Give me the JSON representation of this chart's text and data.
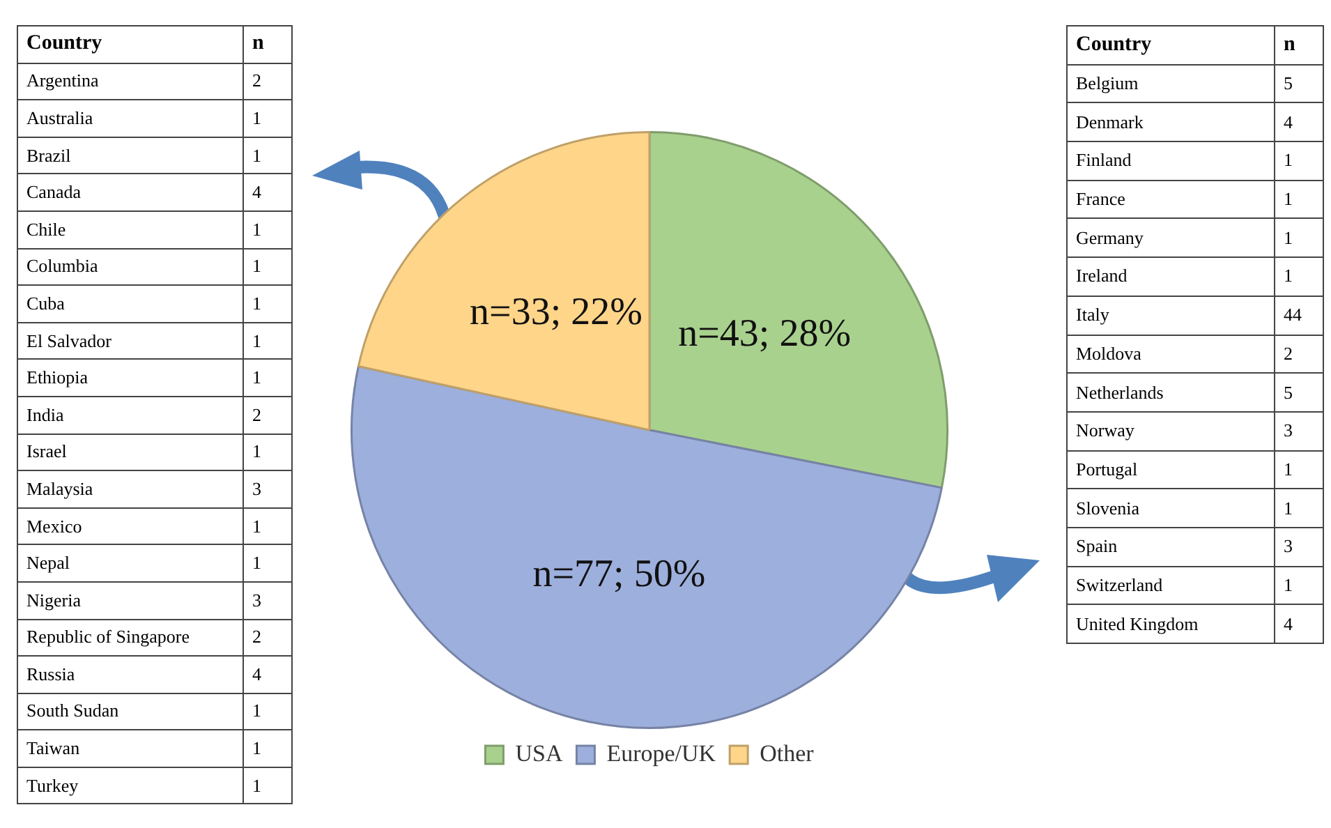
{
  "chart_data": [
    {
      "type": "other",
      "xlabel": "Country",
      "ylabel": "n",
      "categories": [
        "Argentina",
        "Australia",
        "Brazil",
        "Canada",
        "Chile",
        "Columbia",
        "Cuba",
        "El Salvador",
        "Ethiopia",
        "India",
        "Israel",
        "Malaysia",
        "Mexico",
        "Nepal",
        "Nigeria",
        "Republic  of Singapore",
        "Russia",
        "South Sudan",
        "Taiwan",
        "Turkey"
      ],
      "values": [
        2,
        1,
        1,
        4,
        1,
        1,
        1,
        1,
        1,
        2,
        1,
        3,
        1,
        1,
        3,
        2,
        4,
        1,
        1,
        1
      ],
      "data_labels": true
    },
    {
      "type": "pie",
      "categories": [
        "USA",
        "Europe/UK",
        "Other"
      ],
      "values": [
        43,
        77,
        33
      ],
      "colors": [
        "#a9d18e",
        "#9dafdc",
        "#ffd58a"
      ],
      "value_labels": [
        "n=43; 28%",
        "n=77; 50%",
        "n=33; 22%"
      ],
      "legend": "bottom"
    },
    {
      "type": "other",
      "xlabel": "Country",
      "ylabel": "n",
      "categories": [
        "Belgium",
        "Denmark",
        "Finland",
        "France",
        "Germany",
        "Ireland",
        "Italy",
        "Moldova",
        "Netherlands",
        "Norway",
        "Portugal",
        "Slovenia",
        "Spain",
        "Switzerland",
        "United  Kingdom"
      ],
      "values": [
        5,
        4,
        1,
        1,
        1,
        1,
        44,
        2,
        5,
        3,
        1,
        1,
        3,
        1,
        4
      ],
      "data_labels": true
    }
  ]
}
